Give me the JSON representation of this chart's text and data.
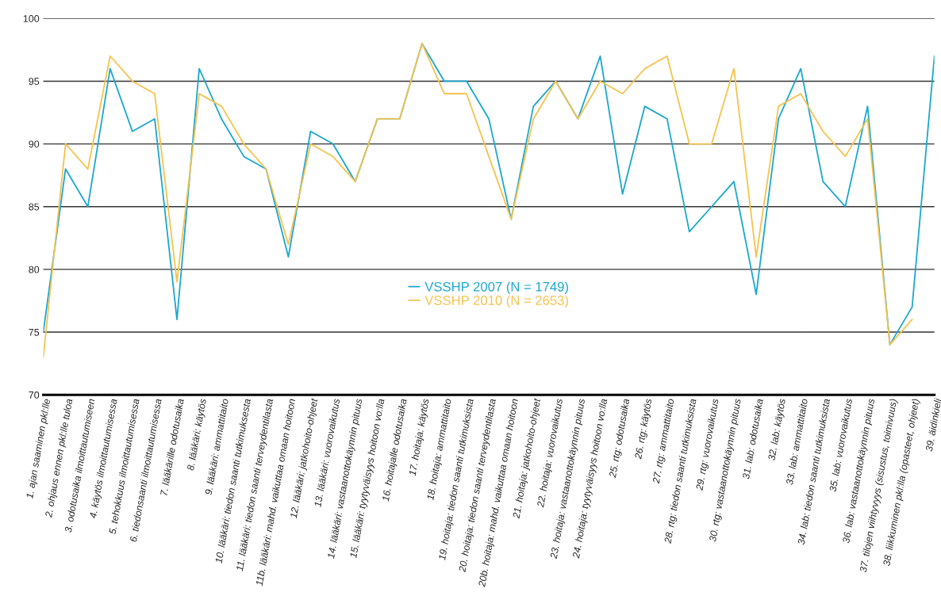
{
  "chart_data": {
    "type": "line",
    "categories": [
      "1. ajan saaminen pkl:lle",
      "2. ohjaus ennen pkl:lle tuloa",
      "3. odotusaika ilmoittautumiseen",
      "4. käytös ilmoittautumisessa",
      "5. tehokkuus ilmoittautumisessa",
      "6. tiedonsaanti ilmoittautumisessa",
      "7. lääkärille odotusaika",
      "8. lääkäri: käytös",
      "9. lääkäri: ammattitaito",
      "10. lääkäri: tiedon saanti tutkimuksesta",
      "11. lääkäri: tiedon saanti terveydentilasta",
      "11b. lääkäri: mahd. vaikuttaa omaan hoitoon",
      "12. lääkäri: jatkohoito-ohjeet",
      "13. lääkäri: vuorovaikutus",
      "14. lääkäri: vastaanottokäynnin pituus",
      "15. lääkäri: tyytyväisyys hoitoon vo:lla",
      "16. hoitajalle odotusaika",
      "17. hoitaja: käytös",
      "18. hoitaja: ammattitaito",
      "19. hoitaja: tiedon saanti tutkimuksista",
      "20. hoitaja: tiedon saanti terveydentilasta",
      "20b. hoitaja: mahd. vaikuttaa omaan hoitoon",
      "21. hoitaja: jatkohoito-ohjeet",
      "22. hoitaja: vuorovaikutus",
      "23. hoitaja: vastaanottokäynnin pituus",
      "24. hoitaja: tyytyväisyys hoitoon vo:lla",
      "25. rtg: odotusaika",
      "26. rtg: käytös",
      "27. rtg: ammattitaito",
      "28. rtg: tiedon saanti tutkimuksista",
      "29. rtg: vuorovaikutus",
      "30. rtg: vastaanottokäynnin pituus",
      "31. lab: odotusaika",
      "32. lab: käytös",
      "33. lab: ammattitaito",
      "34. lab: tiedon saanti tutkimuksista",
      "35. lab: vuorovaikutus",
      "36. lab: vastaanottokäynnin pituus",
      "37. tilojen viihtyvyys (sisustus, toimivuus)",
      "38. liikkuminen pkl:lla (opasteet, ohjeet)",
      "39. äidinkieli"
    ],
    "series": [
      {
        "name": "VSSHP 2007 (N = 1749)",
        "color": "#1aa7d1",
        "values": [
          75,
          88,
          85,
          96,
          91,
          92,
          76,
          96,
          92,
          89,
          88,
          81,
          91,
          90,
          87,
          92,
          92,
          98,
          95,
          95,
          92,
          84,
          93,
          95,
          92,
          97,
          86,
          93,
          92,
          83,
          85,
          87,
          78,
          92,
          96,
          87,
          85,
          93,
          74,
          77,
          97
        ]
      },
      {
        "name": "VSSHP 2010 (N = 2653)",
        "color": "#f5c34e",
        "values": [
          73,
          90,
          88,
          97,
          95,
          94,
          79,
          94,
          93,
          90,
          88,
          82,
          90,
          89,
          87,
          92,
          92,
          98,
          94,
          94,
          89,
          84,
          92,
          95,
          92,
          95,
          94,
          96,
          97,
          90,
          90,
          96,
          81,
          93,
          94,
          91,
          89,
          92,
          74,
          76,
          null
        ]
      }
    ],
    "ylim": [
      70,
      100
    ],
    "yticks": [
      70,
      75,
      80,
      85,
      90,
      95,
      100
    ],
    "grid": "y",
    "legend": "bottom"
  }
}
